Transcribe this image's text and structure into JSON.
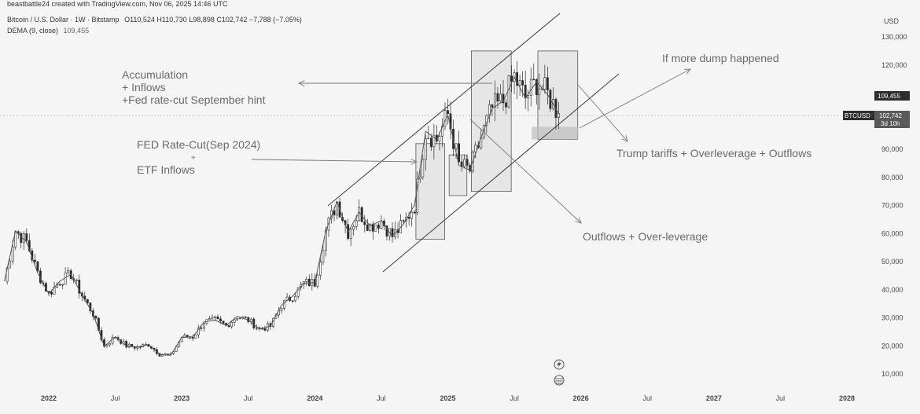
{
  "header": {
    "attribution": "beastbattle24 created with TradingView.com, Nov 06, 2025 14:46 UTC",
    "symbol_line": "Bitcoin / U.S. Dollar · 1W · Bitstamp",
    "ohlc": "O110,524  H110,730  L98,898  C102,742  −7,788 (−7.05%)",
    "indicator": "DEMA (9, close)",
    "indicator_value": "109,455"
  },
  "axis": {
    "currency": "USD",
    "price_ticks": [
      "130,000",
      "120,000",
      "109,455",
      "102,742",
      "90,000",
      "80,000",
      "70,000",
      "60,000",
      "50,000",
      "40,000",
      "30,000",
      "20,000",
      "10,000"
    ],
    "time_ticks": [
      {
        "label": "2022",
        "bold": true
      },
      {
        "label": "Jul",
        "bold": false
      },
      {
        "label": "2023",
        "bold": true
      },
      {
        "label": "Jul",
        "bold": false
      },
      {
        "label": "2024",
        "bold": true
      },
      {
        "label": "Jul",
        "bold": false
      },
      {
        "label": "2025",
        "bold": true
      },
      {
        "label": "Jul",
        "bold": false
      },
      {
        "label": "2026",
        "bold": true
      },
      {
        "label": "Jul",
        "bold": false
      },
      {
        "label": "2027",
        "bold": true
      },
      {
        "label": "Jul",
        "bold": false
      },
      {
        "label": "2028",
        "bold": true
      }
    ],
    "price_tag_dema": "109,455",
    "price_tag_symbol": "BTCUSD",
    "price_tag_close": "102,742",
    "price_tag_countdown": "3d 10h"
  },
  "annotations": {
    "accumulation_l1": "Accumulation",
    "accumulation_l2": "+ Inflows",
    "accumulation_l3": "+Fed rate-cut September hint",
    "fed_l1": "FED Rate-Cut(Sep 2024)",
    "fed_l2": "+",
    "fed_l3": "ETF Inflows",
    "dump": "If more dump happened",
    "trump": "Trump tariffs + Overleverage + Outflows",
    "outflows": "Outflows + Over-leverage"
  },
  "colors": {
    "background": "#f5f5f5",
    "candle": "#2b2b2b",
    "dema": "#555555",
    "box_fill": "#d9d9d9",
    "channel": "#3a3a3a",
    "tag_dark": "#2d2d2d",
    "tag_mid": "#5a5a5a"
  },
  "chart_data": {
    "type": "line",
    "title": "Bitcoin / U.S. Dollar · 1W · Bitstamp",
    "xlabel": "",
    "ylabel": "USD",
    "ylim": [
      5000,
      135000
    ],
    "xlim": [
      "2021-08-01",
      "2028-03-01"
    ],
    "grid": false,
    "series": [
      {
        "name": "BTCUSD",
        "x": [
          "2021-09",
          "2021-10",
          "2021-11",
          "2021-12",
          "2022-01",
          "2022-02",
          "2022-03",
          "2022-04",
          "2022-05",
          "2022-06",
          "2022-07",
          "2022-08",
          "2022-09",
          "2022-10",
          "2022-11",
          "2022-12",
          "2023-01",
          "2023-02",
          "2023-03",
          "2023-04",
          "2023-05",
          "2023-06",
          "2023-07",
          "2023-08",
          "2023-09",
          "2023-10",
          "2023-11",
          "2023-12",
          "2024-01",
          "2024-02",
          "2024-03",
          "2024-04",
          "2024-05",
          "2024-06",
          "2024-07",
          "2024-08",
          "2024-09",
          "2024-10",
          "2024-11",
          "2024-12",
          "2025-01",
          "2025-02",
          "2025-03",
          "2025-04",
          "2025-05",
          "2025-06",
          "2025-07",
          "2025-08",
          "2025-09",
          "2025-10",
          "2025-11"
        ],
        "values": [
          43000,
          61000,
          57000,
          46000,
          38500,
          43000,
          45500,
          38000,
          31500,
          19800,
          23300,
          20000,
          19500,
          20500,
          17000,
          16600,
          23100,
          23200,
          28500,
          29200,
          27200,
          30500,
          29200,
          26000,
          27000,
          34500,
          37700,
          42300,
          42500,
          61000,
          71300,
          60600,
          67500,
          62700,
          64600,
          59000,
          63300,
          70200,
          96400,
          93400,
          102400,
          84300,
          82500,
          94200,
          104600,
          107100,
          115700,
          108200,
          114000,
          109500,
          102700
        ]
      },
      {
        "name": "DEMA (9, close)",
        "x": [
          "2025-11"
        ],
        "values": [
          109455
        ]
      }
    ],
    "annotations": [
      "Accumulation",
      "+ Inflows",
      "+Fed rate-cut September hint",
      "FED Rate-Cut(Sep 2024)",
      "+",
      "ETF Inflows",
      "If more dump happened",
      "Trump tariffs + Overleverage + Outflows",
      "Outflows + Over-leverage"
    ]
  }
}
